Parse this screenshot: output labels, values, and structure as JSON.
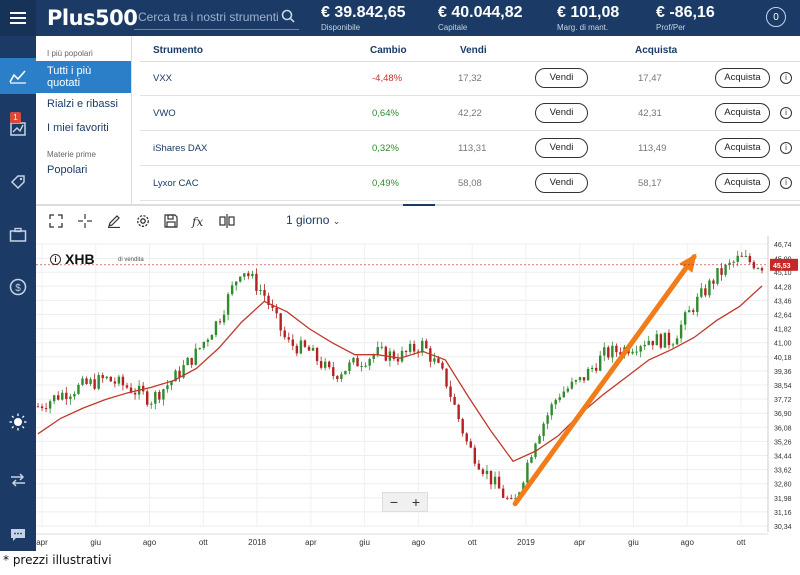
{
  "app": {
    "logo": "Plus500"
  },
  "search": {
    "placeholder": "Cerca tra i nostri strumenti"
  },
  "account": {
    "disponibile": {
      "value": "€ 39.842,65",
      "label": "Disponibile"
    },
    "capitale": {
      "value": "€ 40.044,82",
      "label": "Capitale"
    },
    "margine": {
      "value": "€ 101,08",
      "label": "Marg. di mant."
    },
    "profitto": {
      "value": "€ -86,16",
      "label": "Prof/Per"
    },
    "avatar": "0"
  },
  "nav": {
    "badge": "1"
  },
  "submenu": {
    "cat1": "I più popolari",
    "active_line1": "Tutti i più",
    "active_line2": "quotati",
    "item2": "Rialzi e ribassi",
    "item3": "I miei favoriti",
    "cat2": "Materie prime",
    "item4": "Popolari"
  },
  "table": {
    "headers": {
      "strumento": "Strumento",
      "cambio": "Cambio",
      "vendi": "Vendi",
      "acquista": "Acquista"
    },
    "sell_label": "Vendi",
    "buy_label": "Acquista",
    "rows": [
      {
        "name": "VXX",
        "change": "-4,48%",
        "sell": "17,32",
        "buy": "17,47"
      },
      {
        "name": "VWO",
        "change": "0,64%",
        "sell": "42,22",
        "buy": "42,31"
      },
      {
        "name": "iShares DAX",
        "change": "0,32%",
        "sell": "113,31",
        "buy": "113,49"
      },
      {
        "name": "Lyxor CAC",
        "change": "0,49%",
        "sell": "58,08",
        "buy": "58,17"
      }
    ]
  },
  "toolbar": {
    "timeframe": "1 giorno"
  },
  "chart": {
    "symbol": "XHB",
    "subtitle": "di vendita",
    "price_tag": "45,53"
  },
  "chart_data": {
    "type": "line",
    "title": "XHB",
    "subtitle": "di vendita",
    "y_ticks": [
      "46,74",
      "45,90",
      "45,10",
      "44,28",
      "43,46",
      "42,64",
      "41,82",
      "41,00",
      "40,18",
      "39,36",
      "38,54",
      "37,72",
      "36,90",
      "36,08",
      "35,26",
      "34,44",
      "33,62",
      "32,80",
      "31,98",
      "31,16",
      "30,34"
    ],
    "x_ticks": [
      "apr",
      "giu",
      "ago",
      "ott",
      "2018",
      "apr",
      "giu",
      "ago",
      "ott",
      "2019",
      "apr",
      "giu",
      "ago",
      "ott"
    ],
    "ylim": [
      30.34,
      46.74
    ],
    "current_price": 45.53,
    "series": [
      {
        "x": [
          "apr",
          "mag",
          "giu",
          "lug",
          "ago",
          "set",
          "ott",
          "nov",
          "dic",
          "2018",
          "feb",
          "mar",
          "apr",
          "mag",
          "giu",
          "lug",
          "ago",
          "set",
          "ott",
          "nov",
          "dic",
          "2019",
          "feb",
          "mar",
          "apr",
          "mag",
          "giu",
          "lug",
          "ago",
          "set",
          "ott",
          "nov",
          "dic"
        ],
        "values": [
          37.3,
          38.0,
          38.5,
          38.9,
          38.4,
          37.7,
          38.9,
          40.4,
          42.4,
          45.4,
          43.8,
          41.0,
          40.5,
          39.1,
          39.8,
          40.4,
          40.2,
          40.9,
          38.9,
          35.0,
          33.1,
          31.4,
          35.5,
          38.0,
          38.8,
          40.3,
          40.7,
          41.2,
          41.1,
          43.2,
          44.9,
          45.9,
          45.5
        ]
      },
      {
        "x": [
          "apr",
          "mag",
          "giu",
          "lug",
          "ago",
          "set",
          "ott",
          "nov",
          "dic",
          "2018",
          "feb",
          "mar",
          "apr",
          "mag",
          "giu",
          "lug",
          "ago",
          "set",
          "ott",
          "nov",
          "dic",
          "2019",
          "feb",
          "mar",
          "apr",
          "mag",
          "giu",
          "lug",
          "ago",
          "set",
          "ott",
          "nov",
          "dic"
        ],
        "values": [
          35.7,
          36.6,
          37.2,
          37.7,
          38.1,
          38.4,
          38.8,
          39.5,
          40.7,
          42.2,
          43.4,
          42.8,
          41.8,
          41.0,
          40.3,
          40.3,
          40.1,
          40.5,
          40.0,
          37.9,
          35.9,
          34.1,
          34.7,
          35.6,
          36.9,
          38.0,
          39.0,
          40.0,
          40.6,
          41.3,
          42.3,
          43.1,
          44.3
        ]
      }
    ],
    "annotation": "trend arrow",
    "colors": {
      "candles_up": "#2e8b2e",
      "candles_down": "#b22222",
      "moving_average": "#c0392b",
      "arrow": "#f07d1a",
      "price_tag": "#c62828"
    }
  },
  "zoom": {
    "minus": "−",
    "plus": "+"
  },
  "footer": {
    "note": "* prezzi illustrativi"
  },
  "colors": {
    "header": "#1b3b66",
    "accent": "#2a7fc8"
  }
}
